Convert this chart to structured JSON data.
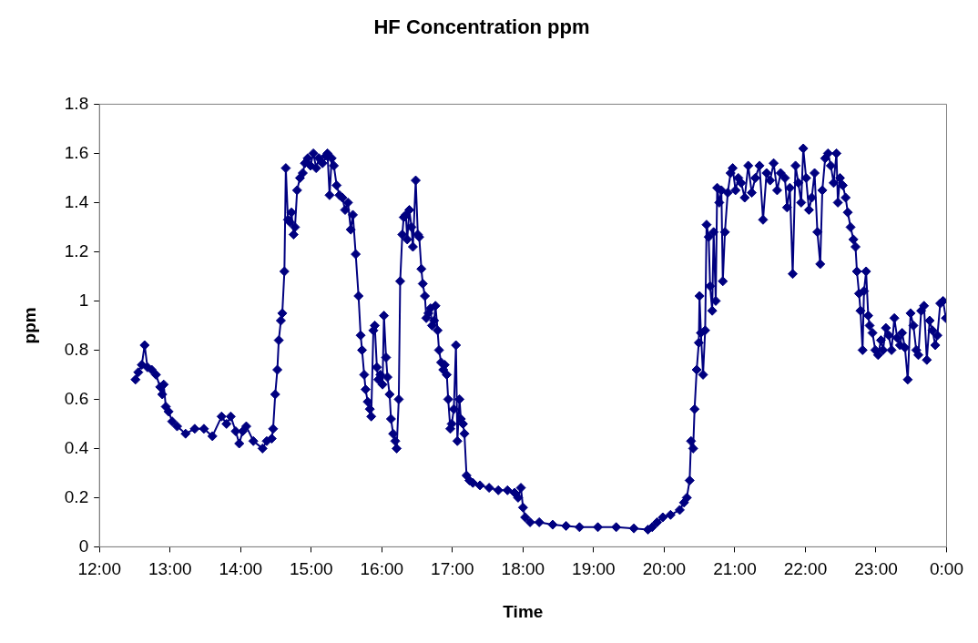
{
  "chart_data": {
    "type": "line",
    "title": "HF Concentration ppm",
    "xlabel": "Time",
    "ylabel": "ppm",
    "xlim": [
      12,
      24
    ],
    "xticks": [
      {
        "value": 12,
        "label": "12:00"
      },
      {
        "value": 13,
        "label": "13:00"
      },
      {
        "value": 14,
        "label": "14:00"
      },
      {
        "value": 15,
        "label": "15:00"
      },
      {
        "value": 16,
        "label": "16:00"
      },
      {
        "value": 17,
        "label": "17:00"
      },
      {
        "value": 18,
        "label": "18:00"
      },
      {
        "value": 19,
        "label": "19:00"
      },
      {
        "value": 20,
        "label": "20:00"
      },
      {
        "value": 21,
        "label": "21:00"
      },
      {
        "value": 22,
        "label": "22:00"
      },
      {
        "value": 23,
        "label": "23:00"
      },
      {
        "value": 24,
        "label": "0:00"
      }
    ],
    "ylim": [
      0,
      1.8
    ],
    "yticks": [
      0,
      0.2,
      0.4,
      0.6,
      0.8,
      1,
      1.2,
      1.4,
      1.6,
      1.8
    ],
    "grid": false,
    "legend": false,
    "marker": "diamond",
    "line_style": "solid",
    "series": [
      {
        "color": "#000080",
        "x": [
          12.51,
          12.55,
          12.6,
          12.64,
          12.68,
          12.74,
          12.8,
          12.86,
          12.89,
          12.91,
          12.94,
          12.98,
          13.03,
          13.1,
          13.22,
          13.35,
          13.48,
          13.6,
          13.73,
          13.8,
          13.86,
          13.93,
          13.98,
          14.03,
          14.08,
          14.18,
          14.31,
          14.37,
          14.44,
          14.46,
          14.49,
          14.52,
          14.54,
          14.57,
          14.59,
          14.62,
          14.64,
          14.67,
          14.7,
          14.72,
          14.75,
          14.77,
          14.8,
          14.84,
          14.88,
          14.91,
          14.95,
          14.99,
          15.03,
          15.07,
          15.11,
          15.16,
          15.21,
          15.23,
          15.26,
          15.29,
          15.32,
          15.36,
          15.4,
          15.44,
          15.48,
          15.52,
          15.56,
          15.59,
          15.63,
          15.67,
          15.7,
          15.72,
          15.75,
          15.77,
          15.8,
          15.83,
          15.85,
          15.88,
          15.9,
          15.93,
          15.95,
          15.98,
          16.01,
          16.03,
          16.06,
          16.08,
          16.11,
          16.13,
          16.16,
          16.19,
          16.21,
          16.24,
          16.26,
          16.29,
          16.31,
          16.34,
          16.36,
          16.39,
          16.42,
          16.44,
          16.48,
          16.51,
          16.53,
          16.56,
          16.58,
          16.61,
          16.63,
          16.66,
          16.69,
          16.71,
          16.74,
          16.76,
          16.79,
          16.81,
          16.84,
          16.87,
          16.89,
          16.92,
          16.94,
          16.97,
          16.99,
          17.02,
          17.05,
          17.07,
          17.1,
          17.12,
          17.15,
          17.17,
          17.2,
          17.24,
          17.29,
          17.39,
          17.52,
          17.65,
          17.78,
          17.88,
          17.93,
          17.97,
          18.0,
          18.03,
          18.1,
          18.23,
          18.42,
          18.61,
          18.8,
          19.06,
          19.32,
          19.57,
          19.77,
          19.83,
          19.9,
          19.98,
          20.09,
          20.22,
          20.28,
          20.32,
          20.36,
          20.38,
          20.41,
          20.43,
          20.46,
          20.49,
          20.5,
          20.52,
          20.55,
          20.58,
          20.6,
          20.63,
          20.65,
          20.68,
          20.7,
          20.73,
          20.75,
          20.78,
          20.81,
          20.83,
          20.86,
          20.9,
          20.94,
          20.97,
          21.01,
          21.05,
          21.09,
          21.14,
          21.19,
          21.24,
          21.29,
          21.35,
          21.4,
          21.45,
          21.5,
          21.55,
          21.6,
          21.65,
          21.71,
          21.74,
          21.78,
          21.82,
          21.86,
          21.9,
          21.94,
          21.97,
          22.01,
          22.05,
          22.09,
          22.13,
          22.17,
          22.21,
          22.24,
          22.28,
          22.32,
          22.36,
          22.4,
          22.44,
          22.46,
          22.49,
          22.53,
          22.57,
          22.6,
          22.64,
          22.68,
          22.71,
          22.73,
          22.76,
          22.78,
          22.81,
          22.83,
          22.86,
          22.89,
          22.91,
          22.95,
          22.99,
          23.03,
          23.07,
          23.1,
          23.14,
          23.18,
          23.22,
          23.26,
          23.3,
          23.34,
          23.37,
          23.41,
          23.45,
          23.49,
          23.53,
          23.57,
          23.6,
          23.64,
          23.68,
          23.72,
          23.76,
          23.8,
          23.84,
          23.87,
          23.91,
          23.95,
          23.99
        ],
        "values": [
          0.68,
          0.71,
          0.74,
          0.82,
          0.73,
          0.72,
          0.7,
          0.65,
          0.62,
          0.66,
          0.57,
          0.55,
          0.51,
          0.49,
          0.46,
          0.48,
          0.48,
          0.45,
          0.53,
          0.5,
          0.53,
          0.47,
          0.42,
          0.47,
          0.49,
          0.43,
          0.4,
          0.43,
          0.44,
          0.48,
          0.62,
          0.72,
          0.84,
          0.92,
          0.95,
          1.12,
          1.54,
          1.33,
          1.32,
          1.36,
          1.27,
          1.3,
          1.45,
          1.5,
          1.52,
          1.56,
          1.58,
          1.55,
          1.6,
          1.54,
          1.58,
          1.56,
          1.59,
          1.6,
          1.43,
          1.58,
          1.55,
          1.47,
          1.43,
          1.42,
          1.37,
          1.4,
          1.29,
          1.35,
          1.19,
          1.02,
          0.86,
          0.8,
          0.7,
          0.64,
          0.59,
          0.56,
          0.53,
          0.88,
          0.9,
          0.73,
          0.68,
          0.7,
          0.66,
          0.94,
          0.77,
          0.69,
          0.62,
          0.52,
          0.46,
          0.43,
          0.4,
          0.6,
          1.08,
          1.27,
          1.34,
          1.35,
          1.25,
          1.37,
          1.3,
          1.22,
          1.49,
          1.27,
          1.26,
          1.13,
          1.07,
          1.02,
          0.93,
          0.95,
          0.97,
          0.9,
          0.92,
          0.98,
          0.88,
          0.8,
          0.75,
          0.72,
          0.74,
          0.7,
          0.6,
          0.48,
          0.5,
          0.56,
          0.82,
          0.43,
          0.6,
          0.52,
          0.5,
          0.46,
          0.29,
          0.27,
          0.26,
          0.25,
          0.24,
          0.23,
          0.23,
          0.22,
          0.2,
          0.24,
          0.16,
          0.12,
          0.1,
          0.1,
          0.09,
          0.085,
          0.08,
          0.08,
          0.08,
          0.075,
          0.07,
          0.08,
          0.1,
          0.12,
          0.13,
          0.15,
          0.18,
          0.2,
          0.27,
          0.43,
          0.4,
          0.56,
          0.72,
          0.83,
          1.02,
          0.87,
          0.7,
          0.88,
          1.31,
          1.26,
          1.06,
          0.96,
          1.28,
          1.0,
          1.46,
          1.4,
          1.45,
          1.08,
          1.28,
          1.44,
          1.52,
          1.54,
          1.45,
          1.5,
          1.48,
          1.42,
          1.55,
          1.44,
          1.5,
          1.55,
          1.33,
          1.52,
          1.49,
          1.56,
          1.45,
          1.52,
          1.5,
          1.38,
          1.46,
          1.11,
          1.55,
          1.48,
          1.4,
          1.62,
          1.5,
          1.37,
          1.42,
          1.52,
          1.28,
          1.15,
          1.45,
          1.58,
          1.6,
          1.55,
          1.48,
          1.6,
          1.4,
          1.5,
          1.47,
          1.42,
          1.36,
          1.3,
          1.25,
          1.22,
          1.12,
          1.03,
          0.96,
          0.8,
          1.04,
          1.12,
          0.94,
          0.9,
          0.87,
          0.8,
          0.78,
          0.84,
          0.8,
          0.89,
          0.86,
          0.8,
          0.93,
          0.85,
          0.82,
          0.87,
          0.81,
          0.68,
          0.95,
          0.9,
          0.8,
          0.78,
          0.96,
          0.98,
          0.76,
          0.92,
          0.88,
          0.82,
          0.86,
          0.99,
          1.0,
          0.93
        ]
      }
    ]
  }
}
